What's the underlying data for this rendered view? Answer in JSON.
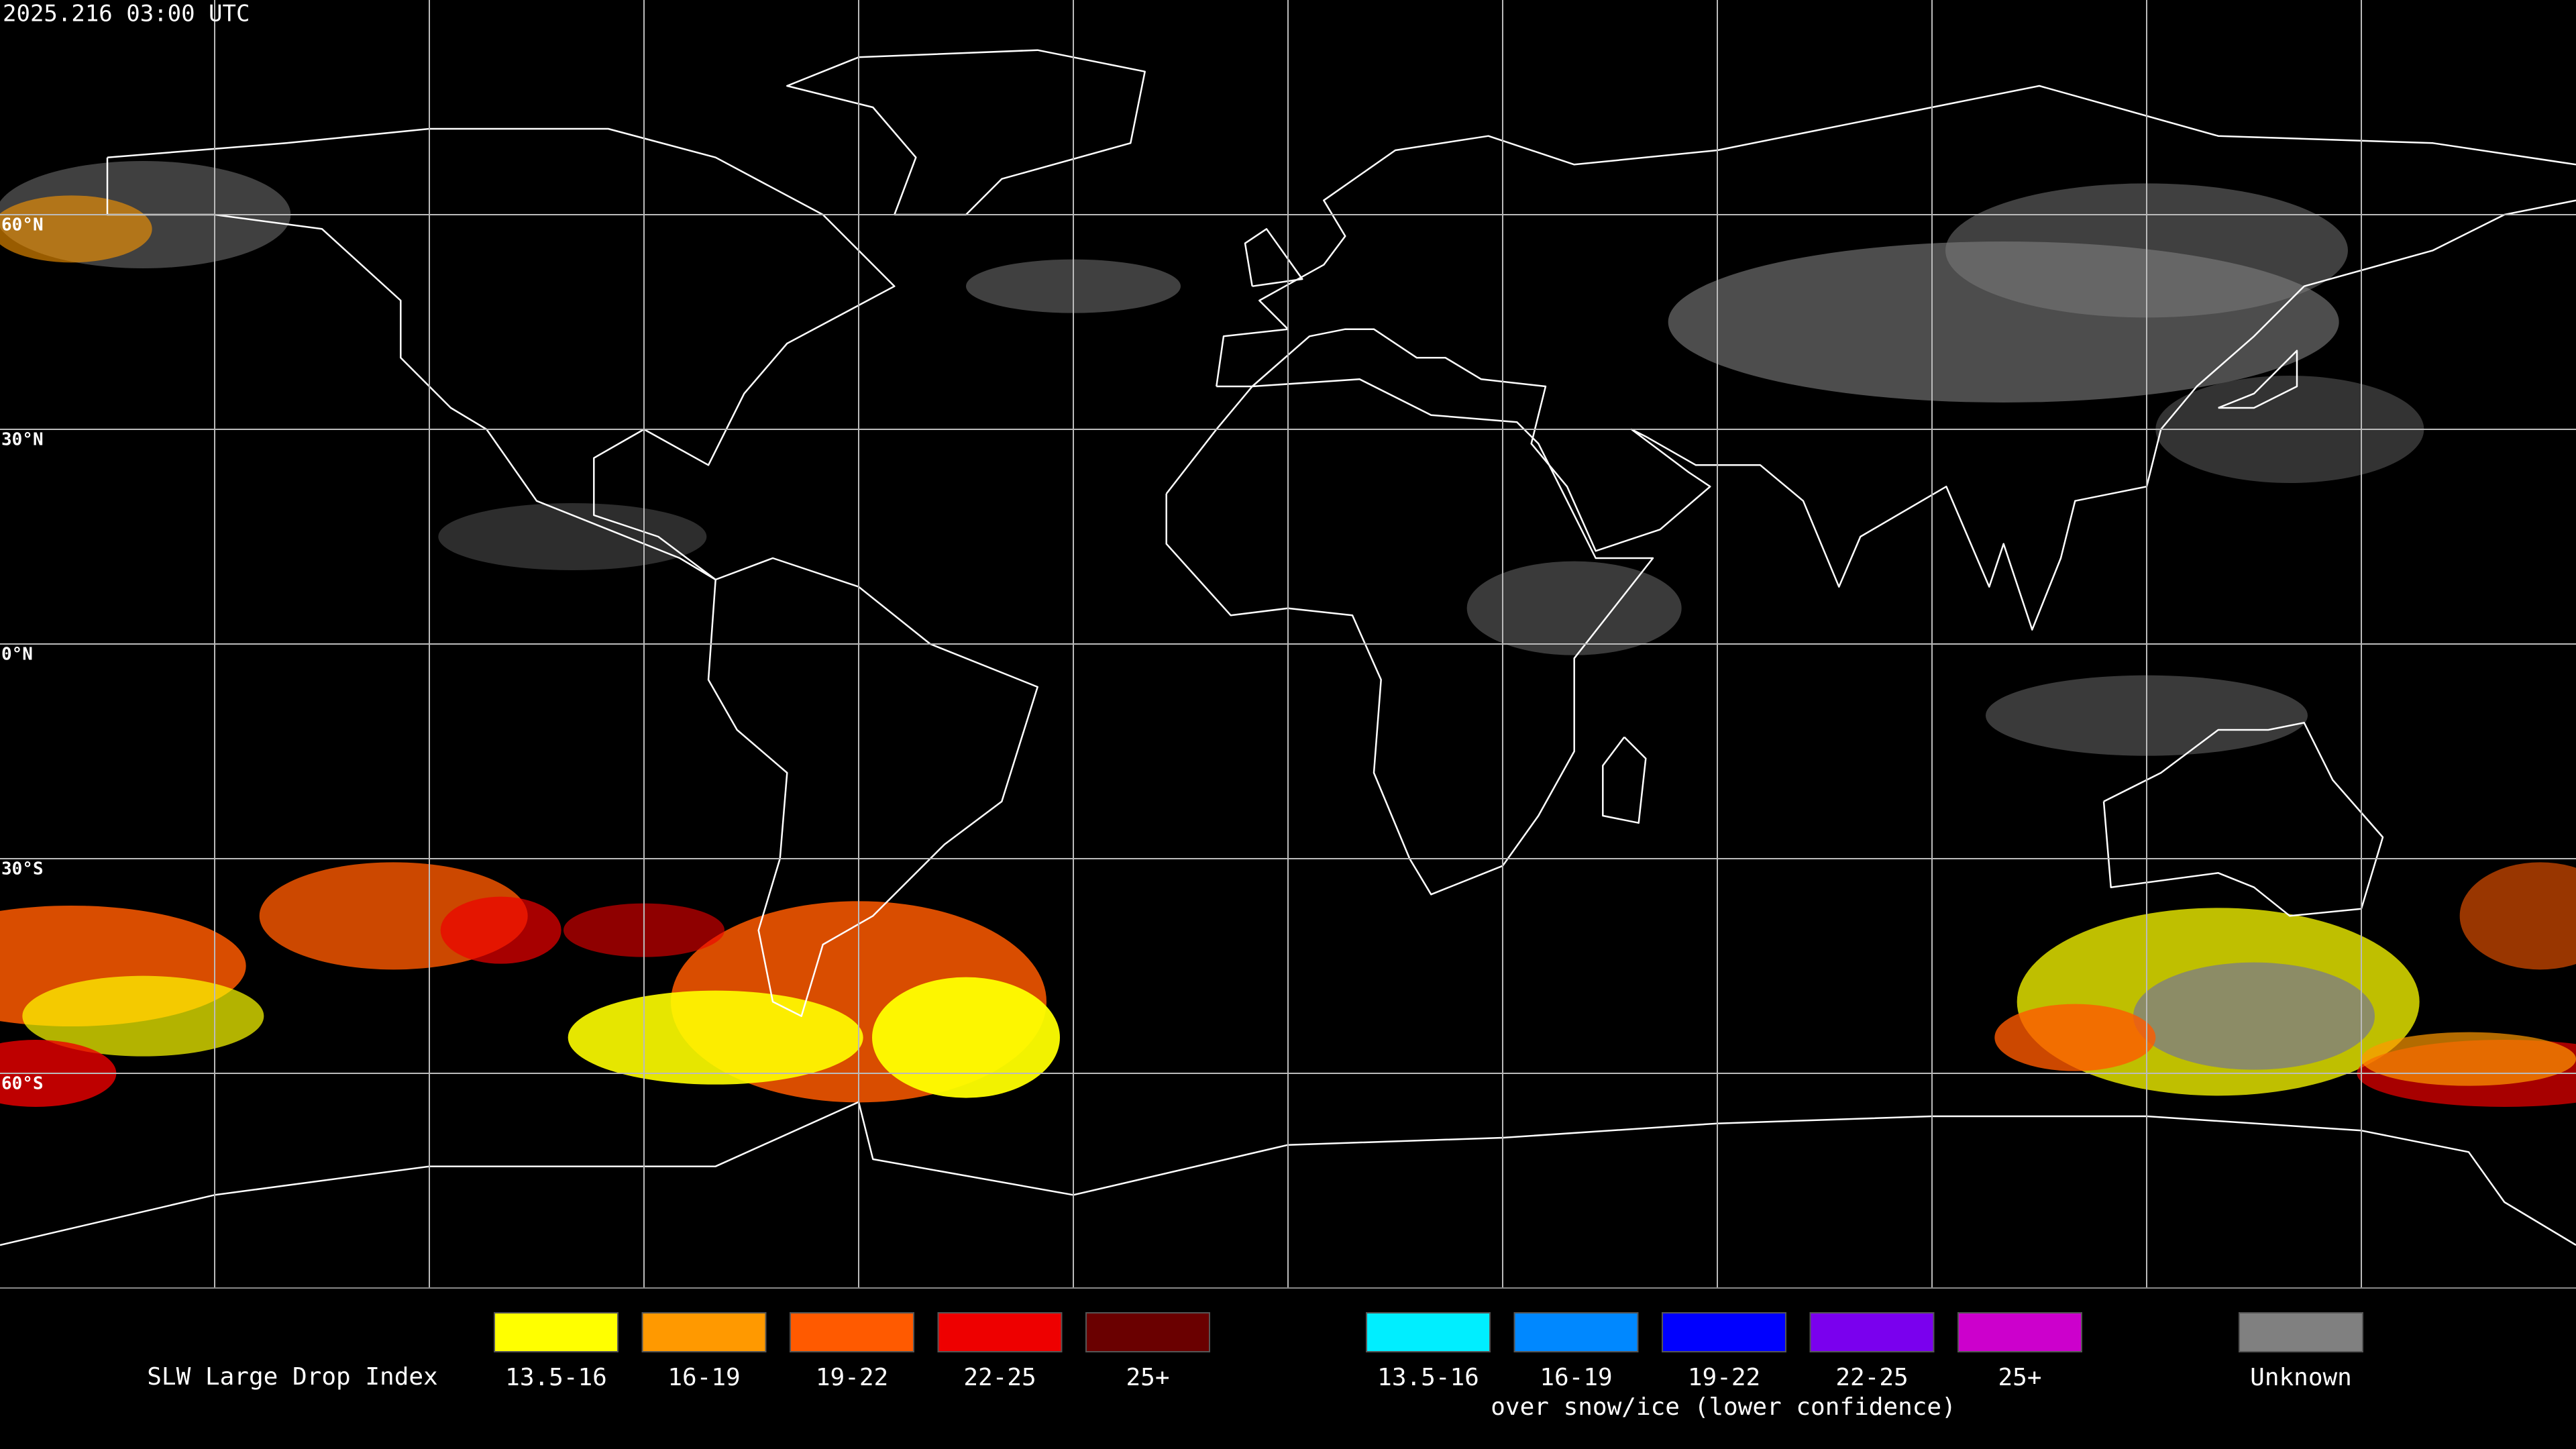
{
  "header": {
    "timestamp": "2025.216 03:00 UTC"
  },
  "map": {
    "latitude_labels": [
      "60°N",
      "30°N",
      "0°N",
      "30°S",
      "60°S"
    ]
  },
  "legend": {
    "title": "SLW Large Drop Index",
    "items": [
      {
        "label": "13.5-16",
        "color": "#ffff00"
      },
      {
        "label": "16-19",
        "color": "#ff9900"
      },
      {
        "label": "19-22",
        "color": "#ff5a00"
      },
      {
        "label": "22-25",
        "color": "#ee0000"
      },
      {
        "label": "25+",
        "color": "#6a0000"
      }
    ],
    "snow_items": [
      {
        "label": "13.5-16",
        "color": "#00eeff"
      },
      {
        "label": "16-19",
        "color": "#0088ff"
      },
      {
        "label": "19-22",
        "color": "#0000ff"
      },
      {
        "label": "22-25",
        "color": "#7a00ee"
      },
      {
        "label": "25+",
        "color": "#cc00cc"
      }
    ],
    "snow_caption": "over snow/ice (lower confidence)",
    "unknown": {
      "label": "Unknown",
      "color": "#808080"
    }
  }
}
